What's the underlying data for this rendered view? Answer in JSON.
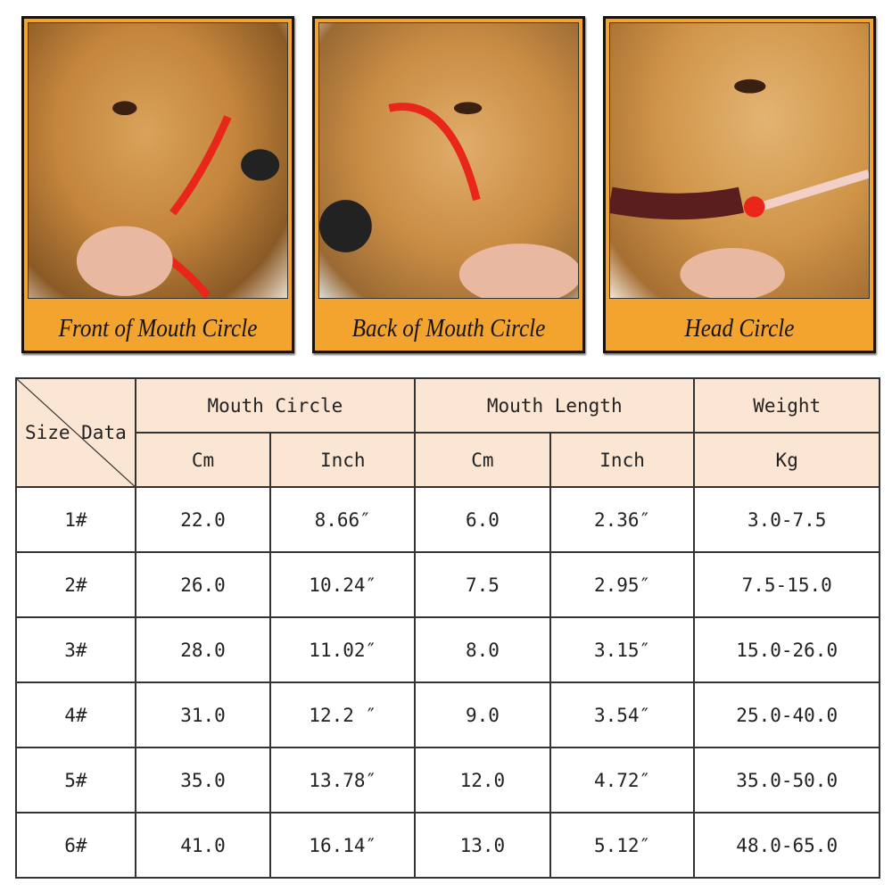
{
  "panels": [
    {
      "caption": "Front of Mouth Circle",
      "icon": "dog-front-mouth-photo"
    },
    {
      "caption": "Back of Mouth Circle",
      "icon": "dog-back-mouth-photo"
    },
    {
      "caption": "Head Circle",
      "icon": "dog-head-photo"
    }
  ],
  "colors": {
    "caption_bg": "#f2a42e",
    "header_bg": "#fbe5d3",
    "strap": "#e8261a"
  },
  "table": {
    "corner": "Size Data",
    "groups": [
      "Mouth Circle",
      "Mouth Length",
      "Weight"
    ],
    "units": [
      "Cm",
      "Inch",
      "Cm",
      "Inch",
      "Kg"
    ],
    "rows": [
      [
        "1#",
        "22.0",
        "8.66″",
        "6.0",
        "2.36″",
        "3.0-7.5"
      ],
      [
        "2#",
        "26.0",
        "10.24″",
        "7.5",
        "2.95″",
        "7.5-15.0"
      ],
      [
        "3#",
        "28.0",
        "11.02″",
        "8.0",
        "3.15″",
        "15.0-26.0"
      ],
      [
        "4#",
        "31.0",
        "12.2 ″",
        "9.0",
        "3.54″",
        "25.0-40.0"
      ],
      [
        "5#",
        "35.0",
        "13.78″",
        "12.0",
        "4.72″",
        "35.0-50.0"
      ],
      [
        "6#",
        "41.0",
        "16.14″",
        "13.0",
        "5.12″",
        "48.0-65.0"
      ]
    ]
  }
}
